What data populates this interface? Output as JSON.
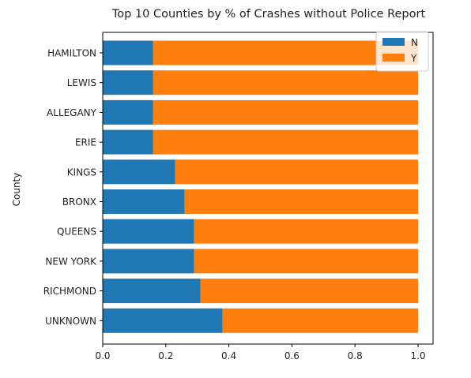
{
  "chart_data": {
    "type": "bar",
    "orientation": "horizontal",
    "stacked": true,
    "title": "Top 10 Counties by % of Crashes without Police Report",
    "xlabel": "",
    "ylabel": "County",
    "xlim": [
      0.0,
      1.0
    ],
    "xticks": [
      "0.0",
      "0.2",
      "0.4",
      "0.6",
      "0.8",
      "1.0"
    ],
    "grid": false,
    "legend_position": "top-right",
    "categories": [
      "HAMILTON",
      "LEWIS",
      "ALLEGANY",
      "ERIE",
      "KINGS",
      "BRONX",
      "QUEENS",
      "NEW YORK",
      "RICHMOND",
      "UNKNOWN"
    ],
    "series": [
      {
        "name": "N",
        "color": "#1f77b4",
        "values": [
          0.16,
          0.16,
          0.16,
          0.16,
          0.23,
          0.26,
          0.29,
          0.29,
          0.31,
          0.38
        ]
      },
      {
        "name": "Y",
        "color": "#ff7f0e",
        "values": [
          0.84,
          0.84,
          0.84,
          0.84,
          0.77,
          0.74,
          0.71,
          0.71,
          0.69,
          0.62
        ]
      }
    ]
  }
}
